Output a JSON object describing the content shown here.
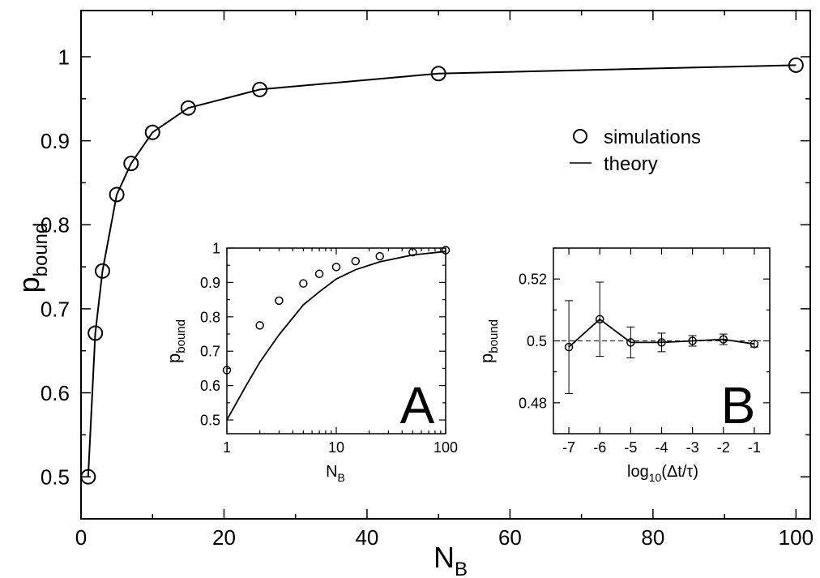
{
  "chart_data": [
    {
      "id": "main",
      "type": "scatter",
      "xlabel": "N",
      "xlabel_sub": "B",
      "ylabel": "p",
      "ylabel_sub": "bound",
      "xlim": [
        0,
        102
      ],
      "ylim": [
        0.45,
        1.055
      ],
      "xticks": [
        0,
        20,
        40,
        60,
        80,
        100
      ],
      "yticks": [
        0.5,
        0.6,
        0.7,
        0.8,
        0.9,
        1
      ],
      "ytick_labels": [
        "0.5",
        "0.6",
        "0.7",
        "0.8",
        "0.9",
        "1"
      ],
      "grid": false,
      "legend": {
        "position": "top-right",
        "entries": [
          {
            "marker": "circle",
            "label": "simulations"
          },
          {
            "marker": "line",
            "label": "theory"
          }
        ]
      },
      "series": [
        {
          "name": "simulations",
          "style": "circle-markers",
          "x": [
            1,
            2,
            3,
            5,
            7,
            10,
            15,
            25,
            50,
            100
          ],
          "y": [
            0.5,
            0.671,
            0.745,
            0.836,
            0.873,
            0.91,
            0.939,
            0.961,
            0.98,
            0.99
          ]
        },
        {
          "name": "theory",
          "style": "line",
          "x": [
            1,
            2,
            3,
            5,
            7,
            10,
            15,
            25,
            50,
            100
          ],
          "y": [
            0.5,
            0.671,
            0.745,
            0.836,
            0.873,
            0.91,
            0.939,
            0.961,
            0.98,
            0.99
          ]
        }
      ]
    },
    {
      "id": "inset-a",
      "type": "scatter",
      "panel_label": "A",
      "xlabel": "N",
      "xlabel_sub": "B",
      "ylabel": "p",
      "ylabel_sub": "bound",
      "xscale": "log",
      "xlim": [
        1,
        100
      ],
      "ylim": [
        0.46,
        1.0
      ],
      "xticks": [
        1,
        10,
        100
      ],
      "xtick_labels": [
        "1",
        "10",
        "100"
      ],
      "yticks": [
        0.5,
        0.6,
        0.7,
        0.8,
        0.9,
        1
      ],
      "ytick_labels": [
        "0.5",
        "0.6",
        "0.7",
        "0.8",
        "0.9",
        "1"
      ],
      "grid": false,
      "series": [
        {
          "style": "circle-markers",
          "x": [
            1,
            2,
            3,
            5,
            7,
            10,
            15,
            25,
            50,
            100
          ],
          "y": [
            0.645,
            0.775,
            0.847,
            0.897,
            0.925,
            0.945,
            0.962,
            0.976,
            0.988,
            0.994
          ]
        },
        {
          "style": "line",
          "x": [
            1,
            1.5,
            2,
            3,
            5,
            7,
            10,
            15,
            25,
            50,
            100
          ],
          "y": [
            0.5,
            0.6,
            0.668,
            0.748,
            0.835,
            0.873,
            0.91,
            0.937,
            0.96,
            0.98,
            0.99
          ]
        }
      ]
    },
    {
      "id": "inset-b",
      "type": "scatter",
      "panel_label": "B",
      "xlabel": "log",
      "xlabel_sub": "10",
      "xlabel_tail": "(Δt/τ)",
      "ylabel": "p",
      "ylabel_sub": "bound",
      "xlim": [
        -7.5,
        -0.5
      ],
      "ylim": [
        0.47,
        0.53
      ],
      "xticks": [
        -7,
        -6,
        -5,
        -4,
        -3,
        -2,
        -1
      ],
      "xtick_labels": [
        "-7",
        "-6",
        "-5",
        "-4",
        "-3",
        "-2",
        "-1"
      ],
      "yticks": [
        0.48,
        0.5,
        0.52
      ],
      "ytick_labels": [
        "0.48",
        "0.5",
        "0.52"
      ],
      "reference_line": 0.5,
      "grid": false,
      "series": [
        {
          "style": "line-circle-errorbars",
          "x": [
            -7,
            -6,
            -5,
            -4,
            -3,
            -2,
            -1
          ],
          "y": [
            0.498,
            0.507,
            0.4995,
            0.4995,
            0.5,
            0.5005,
            0.499
          ],
          "yerr": [
            0.015,
            0.012,
            0.005,
            0.003,
            0.0017,
            0.0017,
            0.001
          ]
        }
      ]
    }
  ]
}
